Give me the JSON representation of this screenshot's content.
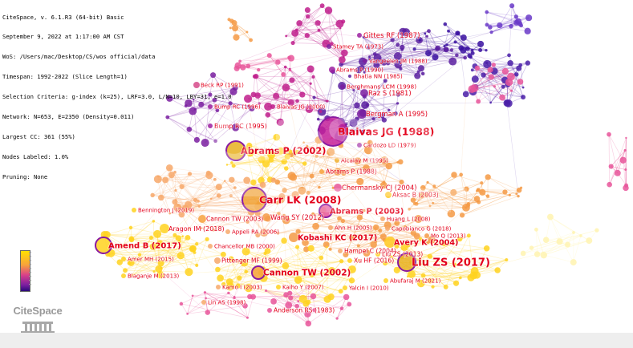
{
  "header": {
    "lines": [
      "CiteSpace, v. 6.1.R3 (64-bit) Basic",
      "September 9, 2022 at 1:17:00 AM CST",
      "WoS: /Users/mac/Desktop/CS/wos official/data",
      "Timespan: 1992-2022 (Slice Length=1)",
      "Selection Criteria: g-index (k=25), LRF=3.0, L/N=10, LBY=31, e=1.0",
      "Network: N=653, E=2350 (Density=0.011)",
      "Largest CC: 361 (55%)",
      "Nodes Labeled: 1.0%",
      "Pruning: None"
    ]
  },
  "logo": {
    "text": "CiteSpace"
  },
  "colors": {
    "label_red": "#e3001b",
    "old_purple": "#5a1ea0",
    "mid_magenta": "#c01e8c",
    "pink": "#e8559a",
    "orange": "#f49a45",
    "yellow": "#ffd21e"
  },
  "labels": [
    {
      "text": "Gittes RF (1987)",
      "size": 8.6
    },
    {
      "text": "Stamey TA (1973)",
      "size": 7
    },
    {
      "text": "Vangeelen JM (1988)",
      "size": 7
    },
    {
      "text": "Abrams P (1990)",
      "size": 7
    },
    {
      "text": "Bhatia NN (1985)",
      "size": 7
    },
    {
      "text": "Beck RP (1991)",
      "size": 7
    },
    {
      "text": "Berghmans LCM (1998)",
      "size": 7.4
    },
    {
      "text": "Raz S (1981)",
      "size": 8.4
    },
    {
      "text": "Bump RC (1996)",
      "size": 7
    },
    {
      "text": "Blaivas JG (2000)",
      "size": 7
    },
    {
      "text": "Bergman A (1995)",
      "size": 8.4
    },
    {
      "text": "Blaivas JG (1988)",
      "size": 12.5
    },
    {
      "text": "Bump RC (1995)",
      "size": 8
    },
    {
      "text": "Cardozo LD (1979)",
      "size": 7
    },
    {
      "text": "Abrams P (2002)",
      "size": 11.3
    },
    {
      "text": "Alcalay M (1995)",
      "size": 7
    },
    {
      "text": "Abrams P (1988)",
      "size": 7.6
    },
    {
      "text": "Chermansky CJ (2004)",
      "size": 8.4
    },
    {
      "text": "Aksac B (2003)",
      "size": 7.6
    },
    {
      "text": "Carr LK (2008)",
      "size": 12.5
    },
    {
      "text": "Bennington J (2019)",
      "size": 7
    },
    {
      "text": "Cannon TW (2003)",
      "size": 7.6
    },
    {
      "text": "Abrams P (2003)",
      "size": 9.8
    },
    {
      "text": "Wang SY (2012)",
      "size": 8.4
    },
    {
      "text": "Huang L (2008)",
      "size": 7
    },
    {
      "text": "Aragon IM (2018)",
      "size": 8
    },
    {
      "text": "Ahn H (2005)",
      "size": 7
    },
    {
      "text": "Capobianco G (2018)",
      "size": 7
    },
    {
      "text": "Appeli RA (2006)",
      "size": 7
    },
    {
      "text": "Mo Q (2013)",
      "size": 7
    },
    {
      "text": "Kobashi KC (2017)",
      "size": 9.6
    },
    {
      "text": "Amend B (2017)",
      "size": 10
    },
    {
      "text": "Chancellor MB (2000)",
      "size": 7
    },
    {
      "text": "Avery K (2004)",
      "size": 9.6
    },
    {
      "text": "Hampel C (2004)",
      "size": 7.6
    },
    {
      "text": "Liu ZS (2013)",
      "size": 7.6
    },
    {
      "text": "Amer MH (2015)",
      "size": 7
    },
    {
      "text": "Pittenger MF (1999)",
      "size": 7.6
    },
    {
      "text": "Xu HF (2016)",
      "size": 7.6
    },
    {
      "text": "Liu ZS (2017)",
      "size": 13
    },
    {
      "text": "Blaganje M (2013)",
      "size": 7
    },
    {
      "text": "Cannon TW (2002)",
      "size": 10.5
    },
    {
      "text": "Abufaraj M (2021)",
      "size": 7
    },
    {
      "text": "Kamo I (2003)",
      "size": 7
    },
    {
      "text": "Kaiho Y (2007)",
      "size": 7
    },
    {
      "text": "Yalcin I (2010)",
      "size": 7
    },
    {
      "text": "Lin AS (1998)",
      "size": 7
    },
    {
      "text": "Anderson RS (1983)",
      "size": 7.6
    }
  ]
}
